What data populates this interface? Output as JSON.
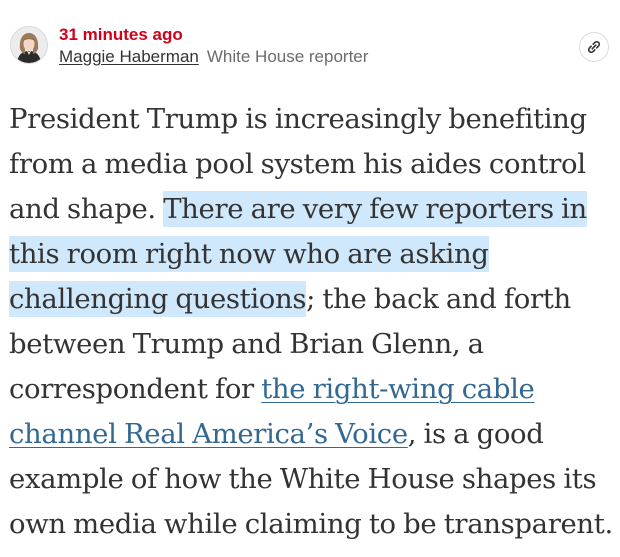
{
  "post": {
    "timestamp": "31 minutes ago",
    "author": {
      "name": "Maggie Haberman",
      "role": "White House reporter"
    },
    "share_icon": "link-icon",
    "body": {
      "text_1": "President Trump is increasingly benefiting from a media pool system his aides control and shape. ",
      "highlighted": "There are very few reporters in this room right now who are asking challenging questions",
      "text_2": "; the back and forth between Trump and Brian Glenn, a correspondent for ",
      "link_text": "the right-wing cable channel Real America’s Voice",
      "text_3": ", is a good example of how the White House shapes its own media while claiming to be transparent."
    }
  },
  "colors": {
    "timestamp": "#d0021b",
    "link": "#326891",
    "highlight": "#cfe8fb",
    "text": "#333333",
    "secondary_text": "#6b6b6b"
  }
}
